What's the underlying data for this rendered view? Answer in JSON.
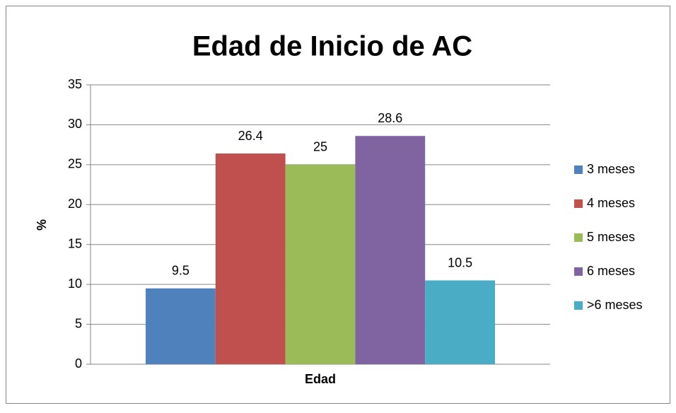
{
  "chart_data": {
    "type": "bar",
    "title": "Edad de Inicio de AC",
    "x_label": "Edad",
    "y_label": "%",
    "categories": [
      "Edad"
    ],
    "series": [
      {
        "name": "3 meses",
        "color": "#4f81bd",
        "values": [
          9.5
        ]
      },
      {
        "name": "4 meses",
        "color": "#c0504d",
        "values": [
          26.4
        ]
      },
      {
        "name": "5 meses",
        "color": "#9bbb59",
        "values": [
          25
        ]
      },
      {
        "name": "6 meses",
        "color": "#8064a2",
        "values": [
          28.6
        ]
      },
      {
        "name": ">6 meses",
        "color": "#4bacc6",
        "values": [
          10.5
        ]
      }
    ],
    "ylim": [
      0,
      35
    ],
    "yticks": [
      0,
      5,
      10,
      15,
      20,
      25,
      30,
      35
    ],
    "grid": true,
    "legend": "right"
  }
}
